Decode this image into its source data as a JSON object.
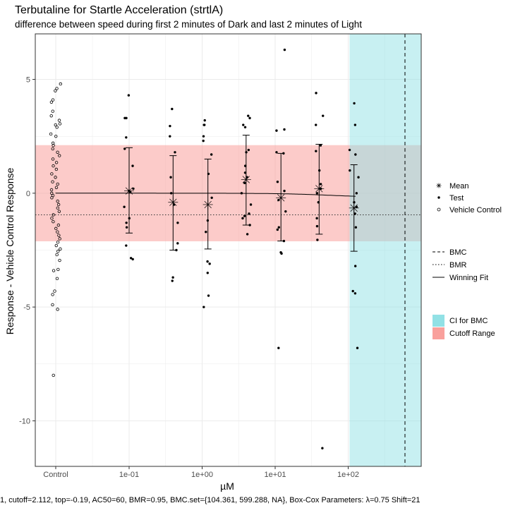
{
  "chart_data": {
    "type": "scatter",
    "title": "Terbutaline for Startle Acceleration (strtlA)",
    "subtitle": "difference between speed during first 2 minutes of Dark and last 2 minutes of Light",
    "xlabel": "µM",
    "ylabel": "Response - Vehicle Control Response",
    "x_ticks": [
      "Control",
      "1e-01",
      "1e+00",
      "1e+01",
      "1e+02"
    ],
    "y_ticks": [
      5,
      0,
      -5,
      -10
    ],
    "ylim": [
      -12,
      7
    ],
    "x_scale": "log10",
    "grid": true,
    "footer": "1, cutoff=2.112, top=-0.19, AC50=60, BMR=0.95, BMC.set={104.361, 599.288, NA}, Box-Cox Parameters: λ=0.75 Shift=21",
    "cutoff": 2.112,
    "bmr": -0.95,
    "bmc": 599.288,
    "ci_bmc": [
      104.361,
      599.288
    ],
    "fit": {
      "top": -0.19,
      "ac50": 60
    },
    "groups": [
      {
        "x": 0.1,
        "mean": 0.1,
        "error_low": -1.75,
        "error_high": 2.0,
        "test": [
          4.3,
          3.3,
          3.3,
          2.45,
          1.95,
          1.2,
          0.2,
          0.1,
          0.05,
          -0.6,
          -1.1,
          -1.3,
          -1.5,
          -2.3,
          -2.85,
          -2.9
        ]
      },
      {
        "x": 0.4,
        "mean": -0.4,
        "error_low": -2.5,
        "error_high": 1.65,
        "test": [
          3.7,
          2.95,
          2.5,
          1.8,
          0.7,
          0.0,
          -0.5,
          -1.3,
          -2.2,
          -2.5,
          -3.7,
          -3.85
        ]
      },
      {
        "x": 1.2,
        "mean": -0.5,
        "error_low": -2.45,
        "error_high": 1.5,
        "test": [
          3.2,
          3.0,
          3.0,
          2.5,
          2.3,
          1.7,
          0.85,
          -0.2,
          -1.2,
          -1.7,
          -3.0,
          -3.1,
          -3.5,
          -4.5,
          -5.0
        ]
      },
      {
        "x": 4,
        "mean": 0.6,
        "error_low": -1.4,
        "error_high": 2.55,
        "test": [
          3.4,
          3.3,
          3.0,
          2.9,
          1.9,
          1.8,
          1.2,
          0.9,
          0.7,
          0.45,
          0.0,
          -0.5,
          -0.9,
          -1.0,
          -1.1,
          -1.4,
          -1.8
        ]
      },
      {
        "x": 12,
        "mean": -0.2,
        "error_low": -2.1,
        "error_high": 1.75,
        "test": [
          6.3,
          2.8,
          2.75,
          1.8,
          1.75,
          0.5,
          0.1,
          -0.3,
          -0.8,
          -1.5,
          -1.6,
          -2.1,
          -2.6,
          -2.65,
          -6.8
        ]
      },
      {
        "x": 40,
        "mean": 0.2,
        "error_low": -1.8,
        "error_high": 2.15,
        "test": [
          4.4,
          3.4,
          3.0,
          2.1,
          1.85,
          1.0,
          0.4,
          0.2,
          0.0,
          -0.4,
          -1.1,
          -1.45,
          -2.05,
          -11.2
        ]
      },
      {
        "x": 120,
        "mean": -0.65,
        "error_low": -2.55,
        "error_high": 1.25,
        "test": [
          3.95,
          3.0,
          1.9,
          1.7,
          1.0,
          0.7,
          0.0,
          -0.4,
          -0.6,
          -0.9,
          -1.5,
          -3.2,
          -4.3,
          -4.4,
          -6.8
        ]
      }
    ],
    "vehicle_control": [
      4.8,
      4.6,
      4.5,
      4.1,
      4.0,
      3.6,
      3.4,
      3.2,
      3.05,
      3.0,
      2.9,
      2.6,
      2.5,
      2.2,
      2.1,
      1.95,
      1.8,
      1.65,
      1.5,
      1.35,
      1.2,
      1.05,
      0.85,
      0.7,
      0.5,
      0.4,
      0.25,
      0.15,
      0.0,
      -0.1,
      -0.2,
      -0.35,
      -0.5,
      -0.65,
      -0.8,
      -0.95,
      -1.1,
      -1.25,
      -1.4,
      -1.55,
      -1.7,
      -1.85,
      -2.0,
      -2.15,
      -2.3,
      -2.45,
      -2.55,
      -2.7,
      -2.95,
      -3.35,
      -3.4,
      -3.75,
      -4.3,
      -4.45,
      -4.9,
      -5.1,
      -8.0
    ],
    "legend": {
      "shapes": [
        {
          "label": "Mean",
          "symbol": "asterisk"
        },
        {
          "label": "Test",
          "symbol": "dot"
        },
        {
          "label": "Vehicle Control",
          "symbol": "open-circle"
        }
      ],
      "lines": [
        {
          "label": "BMC",
          "style": "dashed"
        },
        {
          "label": "BMR",
          "style": "dotted"
        },
        {
          "label": "Winning Fit",
          "style": "solid"
        }
      ],
      "fills": [
        {
          "label": "CI for BMC",
          "color": "#92e1e5"
        },
        {
          "label": "Cutoff Range",
          "color": "#f9a09c"
        }
      ]
    },
    "colors": {
      "cutoff_fill": "#f9a09c",
      "ci_fill": "#92e1e5",
      "grid": "#ebebeb"
    }
  }
}
